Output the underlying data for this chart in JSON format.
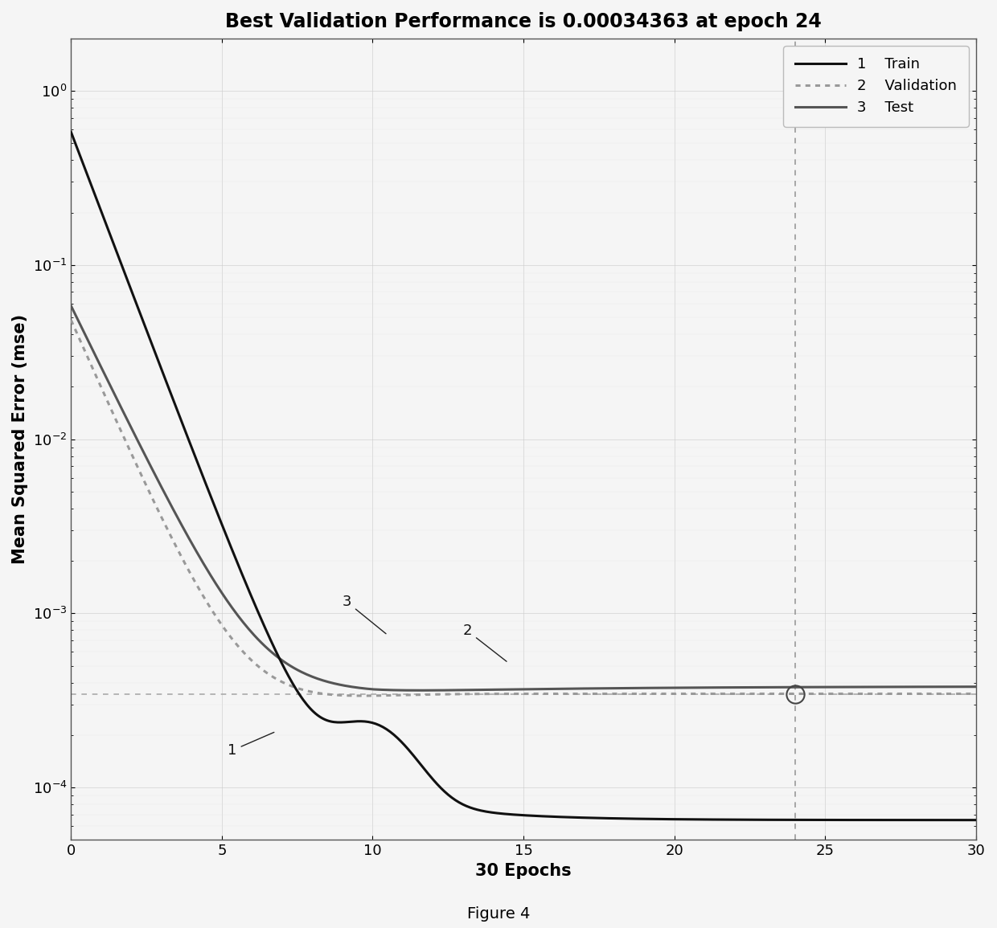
{
  "title": "Best Validation Performance is 0.00034363 at epoch 24",
  "xlabel": "30 Epochs",
  "ylabel": "Mean Squared Error (mse)",
  "best_epoch": 24,
  "best_value": 0.00034363,
  "total_epochs": 30,
  "xlim": [
    0,
    30
  ],
  "train_color": "#111111",
  "validation_color": "#999999",
  "test_color": "#555555",
  "hline_color": "#aaaaaa",
  "vline_color": "#999999",
  "bg_color": "#f5f5f5",
  "legend_labels": [
    "Train",
    "Validation",
    "Test"
  ],
  "figure_caption": "Figure 4",
  "title_fontsize": 17,
  "axis_fontsize": 15,
  "legend_fontsize": 13,
  "tick_labelsize": 13
}
